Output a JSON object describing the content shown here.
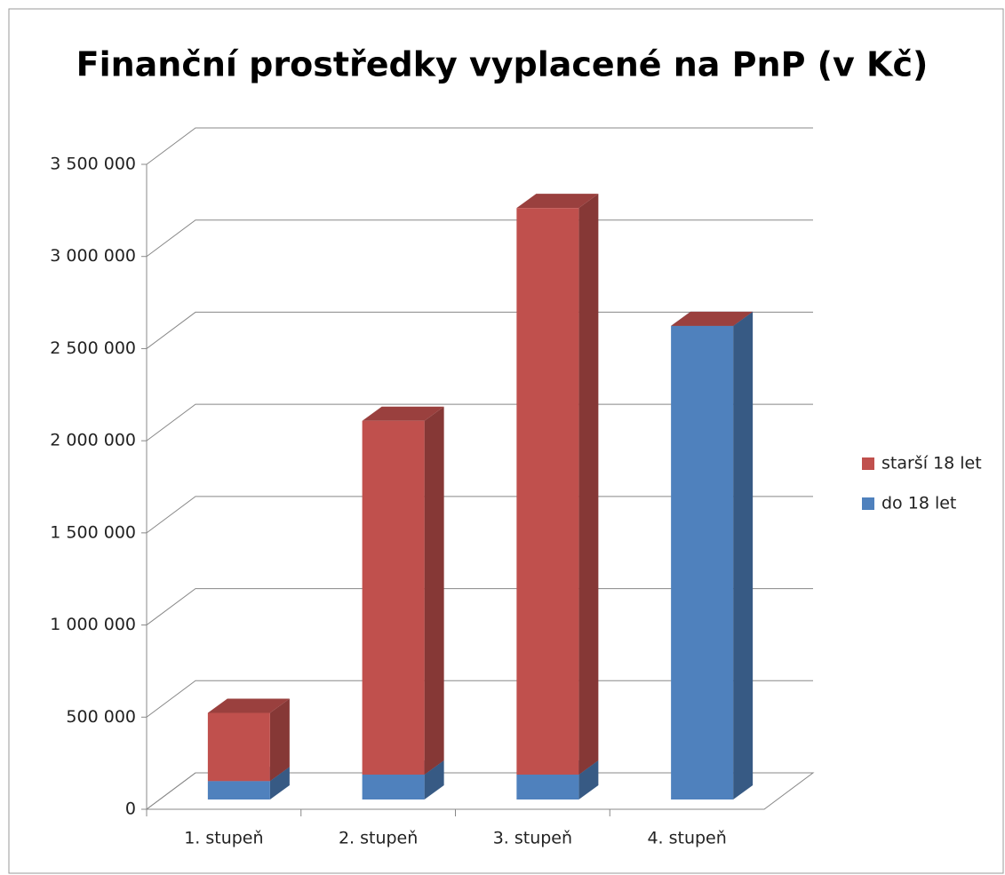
{
  "chart_data": {
    "type": "bar3d_stacked",
    "title": "Finanční prostředky vyplacené na PnP (v Kč)",
    "categories": [
      "1. stupeň",
      "2. stupeň",
      "3. stupeň",
      "4. stupeň"
    ],
    "series": [
      {
        "name": "do 18 let",
        "color": "#4f81bd",
        "values": [
          100000,
          135000,
          135000,
          2570000
        ]
      },
      {
        "name": "starší 18 let",
        "color": "#c0504d",
        "values": [
          370000,
          1920000,
          3075000,
          0
        ]
      }
    ],
    "ylim": [
      0,
      3500000
    ],
    "yticks": [
      0,
      {
        "value": 500000,
        "label": "500 000"
      },
      {
        "value": 1000000,
        "label": "1 000 000"
      },
      {
        "value": 1500000,
        "label": "1 500 000"
      },
      {
        "value": 2000000,
        "label": "2 000 000"
      },
      {
        "value": 2500000,
        "label": "2 500 000"
      },
      {
        "value": 3000000,
        "label": "3 000 000"
      },
      {
        "value": 3500000,
        "label": "3 500 000"
      }
    ],
    "grid": true,
    "legend": "right"
  }
}
